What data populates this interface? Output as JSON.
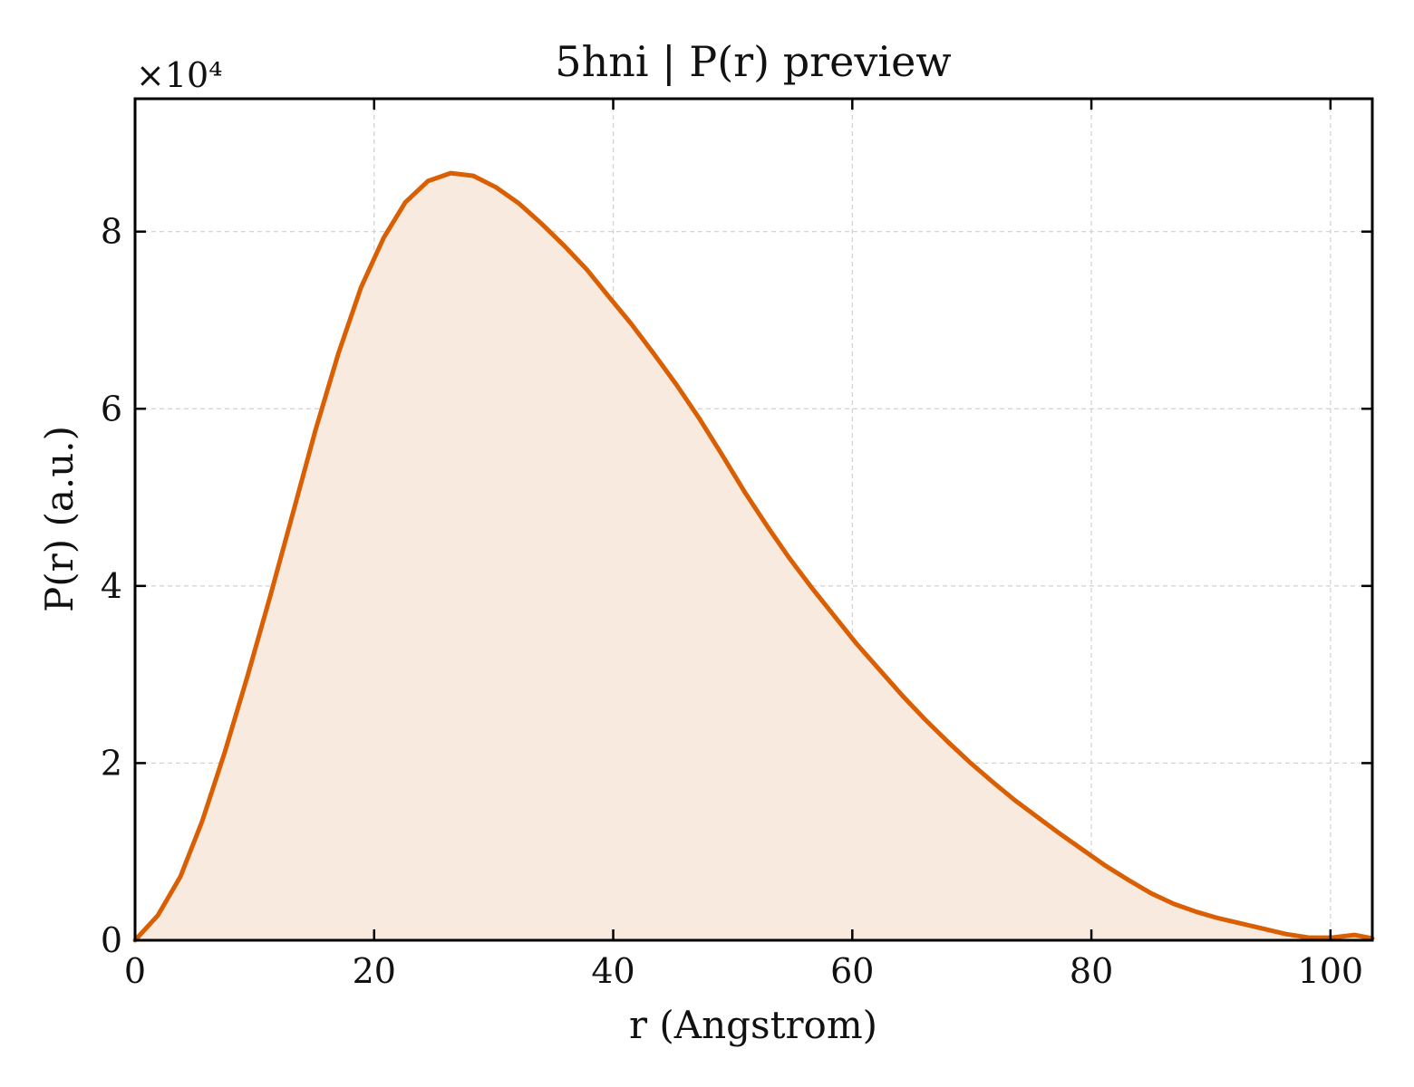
{
  "chart_data": {
    "type": "area",
    "title": "5hni | P(r) preview",
    "xlabel": "r (Angstrom)",
    "ylabel": "P(r) (a.u.)",
    "y_offset_label": "×10⁴",
    "y_scale": 10000,
    "xlim": [
      0,
      103.5
    ],
    "ylim": [
      0,
      95000
    ],
    "x_ticks": [
      0,
      20,
      40,
      60,
      80,
      100
    ],
    "y_ticks": [
      0,
      20000,
      40000,
      60000,
      80000
    ],
    "y_tick_labels": [
      "0",
      "2",
      "4",
      "6",
      "8"
    ],
    "grid": true,
    "legend": "none",
    "line_color": "#d95f02",
    "fill_color": "#f9eadf",
    "series": [
      {
        "x": [
          0,
          1.9,
          3.8,
          5.6,
          7.5,
          9.4,
          11.3,
          13.2,
          15.1,
          17.0,
          18.9,
          20.8,
          22.6,
          24.5,
          26.4,
          28.3,
          30.2,
          32.1,
          34.0,
          35.9,
          37.8,
          39.6,
          41.5,
          43.4,
          45.3,
          47.2,
          49.1,
          51.0,
          52.9,
          54.7,
          56.6,
          58.5,
          60.4,
          62.3,
          64.2,
          66.1,
          68.0,
          69.9,
          71.8,
          73.6,
          75.5,
          77.4,
          79.3,
          81.2,
          83.1,
          85.0,
          86.9,
          88.8,
          90.6,
          92.5,
          94.4,
          96.3,
          98.2,
          100.1,
          102.0,
          103.5
        ],
        "y": [
          0,
          2800,
          7200,
          13400,
          21200,
          29800,
          38800,
          48200,
          57600,
          66200,
          73700,
          79300,
          83300,
          85700,
          86600,
          86300,
          85000,
          83200,
          80900,
          78400,
          75700,
          72700,
          69600,
          66200,
          62700,
          58900,
          54800,
          50600,
          46700,
          43200,
          39800,
          36600,
          33400,
          30500,
          27600,
          24900,
          22400,
          20000,
          17800,
          15800,
          13900,
          12000,
          10200,
          8400,
          6800,
          5300,
          4100,
          3200,
          2500,
          1900,
          1300,
          700,
          300,
          300,
          600,
          200
        ]
      }
    ]
  }
}
